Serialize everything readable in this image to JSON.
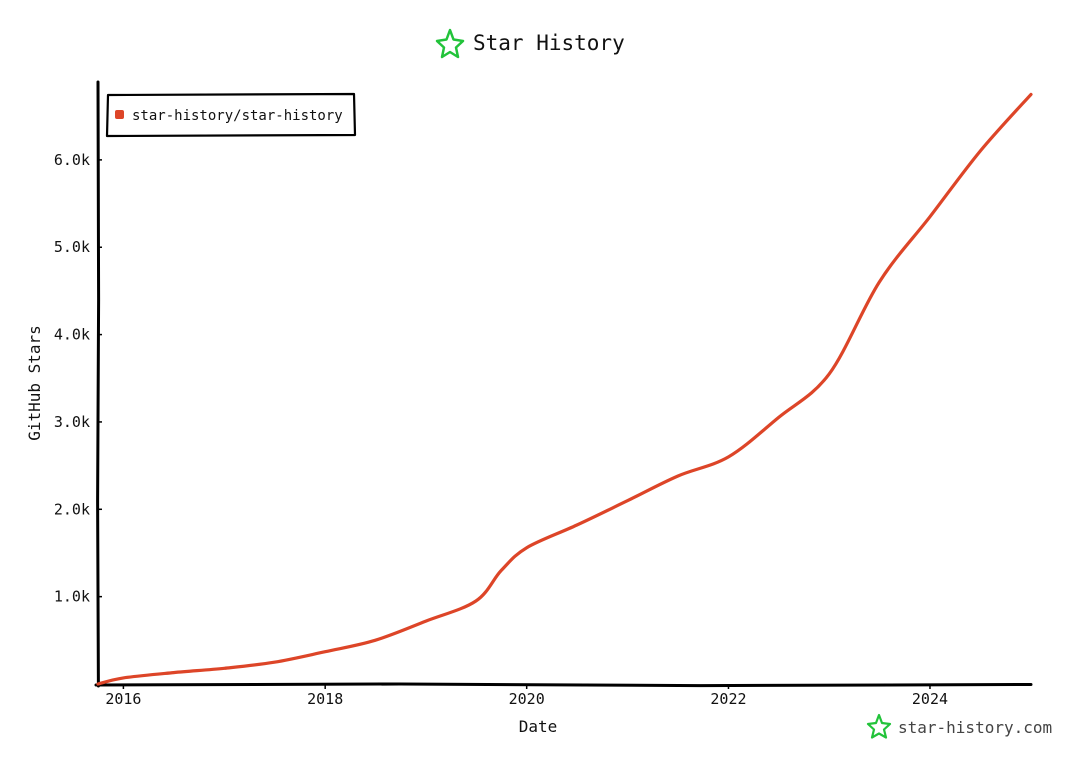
{
  "chart_data": {
    "type": "line",
    "title": "Star History",
    "xlabel": "Date",
    "ylabel": "GitHub Stars",
    "xlim": [
      "2015-10-01",
      "2025-01-01"
    ],
    "ylim": [
      0,
      6800
    ],
    "y_ticks": [
      {
        "value": 1000,
        "label": "1.0k"
      },
      {
        "value": 2000,
        "label": "2.0k"
      },
      {
        "value": 3000,
        "label": "3.0k"
      },
      {
        "value": 4000,
        "label": "4.0k"
      },
      {
        "value": 5000,
        "label": "5.0k"
      },
      {
        "value": 6000,
        "label": "6.0k"
      }
    ],
    "x_ticks": [
      {
        "value": "2016-01-01",
        "label": "2016"
      },
      {
        "value": "2018-01-01",
        "label": "2018"
      },
      {
        "value": "2020-01-01",
        "label": "2020"
      },
      {
        "value": "2022-01-01",
        "label": "2022"
      },
      {
        "value": "2024-01-01",
        "label": "2024"
      }
    ],
    "legend_position": "top-left",
    "grid": false,
    "series": [
      {
        "name": "star-history/star-history",
        "color": "#dd4528",
        "x": [
          "2015-10-01",
          "2016-01-01",
          "2016-07-01",
          "2017-01-01",
          "2017-07-01",
          "2018-01-01",
          "2018-07-01",
          "2019-01-01",
          "2019-07-01",
          "2019-10-01",
          "2020-01-01",
          "2020-07-01",
          "2021-01-01",
          "2021-07-01",
          "2022-01-01",
          "2022-07-01",
          "2023-01-01",
          "2023-07-01",
          "2024-01-01",
          "2024-07-01",
          "2025-01-01"
        ],
        "y": [
          0,
          70,
          130,
          180,
          250,
          370,
          500,
          720,
          950,
          1300,
          1560,
          1820,
          2100,
          2380,
          2600,
          3050,
          3550,
          4600,
          5350,
          6100,
          6750
        ]
      }
    ]
  },
  "watermark": {
    "text": "star-history.com",
    "icon": "star-outline-icon",
    "color": "#22c33a"
  }
}
